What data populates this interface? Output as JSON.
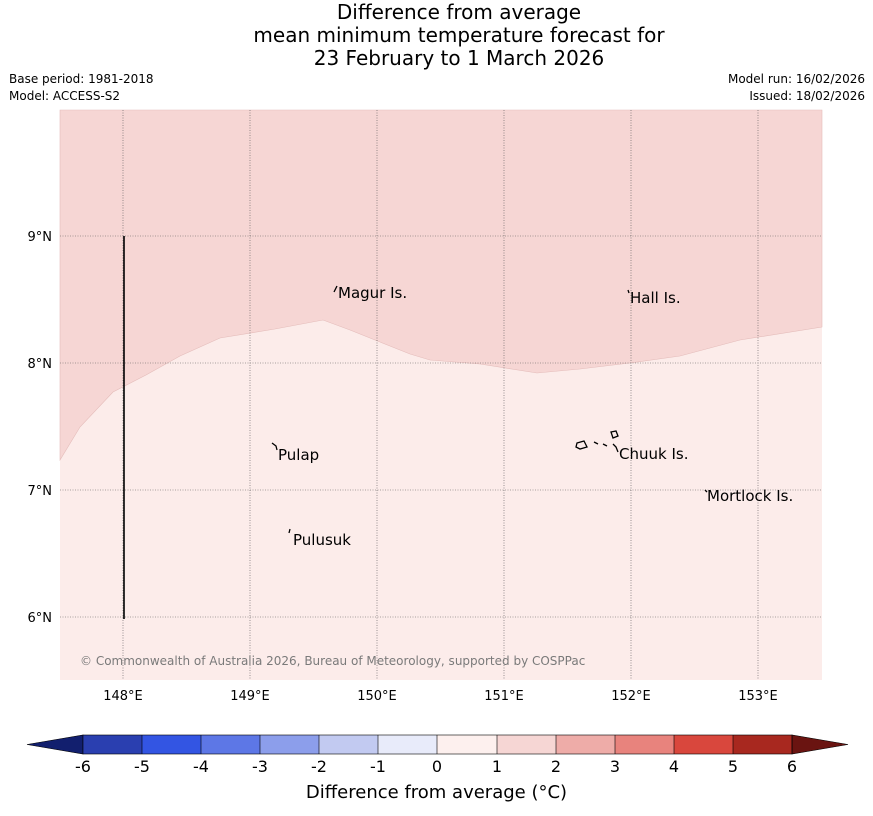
{
  "title": {
    "line1": "Difference from average",
    "line2": "mean minimum temperature forecast for",
    "line3": "23 February to 1 March 2026"
  },
  "meta": {
    "base_period": "Base period: 1981-2018",
    "model": "Model: ACCESS-S2",
    "model_run": "Model run: 16/02/2026",
    "issued": "Issued: 18/02/2026"
  },
  "map": {
    "lat_labels": [
      "9°N",
      "8°N",
      "7°N",
      "6°N"
    ],
    "lon_labels": [
      "148°E",
      "149°E",
      "150°E",
      "151°E",
      "152°E",
      "153°E"
    ],
    "places": {
      "magur": "Magur Is.",
      "hall": "Hall Is.",
      "pulap": "Pulap",
      "chuuk": "Chuuk Is.",
      "mortlock": "Mortlock Is.",
      "pulusuk": "Pulusuk"
    },
    "copyright": "© Commonwealth of Australia 2026, Bureau of Meteorology, supported by COSPPac",
    "colors": {
      "band_1_2": "#f6d6d4",
      "band_0_1": "#fcecea"
    }
  },
  "colorbar": {
    "ticks": [
      "-6",
      "-5",
      "-4",
      "-3",
      "-2",
      "-1",
      "0",
      "1",
      "2",
      "3",
      "4",
      "5",
      "6"
    ],
    "title": "Difference from average (°C)",
    "colors": [
      "#121f6e",
      "#2a3fb0",
      "#3355e3",
      "#5d77e6",
      "#8c9eeb",
      "#c2caf1",
      "#e8ebfa",
      "#fdf0ee",
      "#f6d6d4",
      "#eeaca8",
      "#e8837d",
      "#d9473d",
      "#a8281f",
      "#6a1411"
    ]
  }
}
